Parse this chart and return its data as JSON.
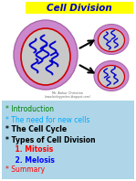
{
  "title": "Cell Division",
  "title_bg": "#ffff00",
  "title_color": "#0000cc",
  "slide_bg": "#aed6e8",
  "top_bg": "#ffffff",
  "bullet_items": [
    {
      "text": "* Introduction",
      "color": "#008000",
      "bold": false
    },
    {
      "text": "* The need for new cells",
      "color": "#00aaff",
      "bold": false
    },
    {
      "text": "* The Cell Cycle",
      "color": "#000000",
      "bold": true
    },
    {
      "text": "* Types of Cell Division",
      "color": "#000000",
      "bold": true
    },
    {
      "text": "    1. Mitosis",
      "color": "#ff0000",
      "bold": true
    },
    {
      "text": "    2. Melosis",
      "color": "#0000ff",
      "bold": true
    },
    {
      "text": "* Summary",
      "color": "#ff0000",
      "bold": false
    }
  ],
  "author": "Mr. Ankur Christian",
  "author2": "(www.biologymites.blogspot.com)",
  "cell_bg": "#c8c8c8",
  "cell_border": "#cc0000",
  "cell_outer": "#cc88cc",
  "chromosome_color": "#0000cc",
  "arrow_color": "#000000"
}
